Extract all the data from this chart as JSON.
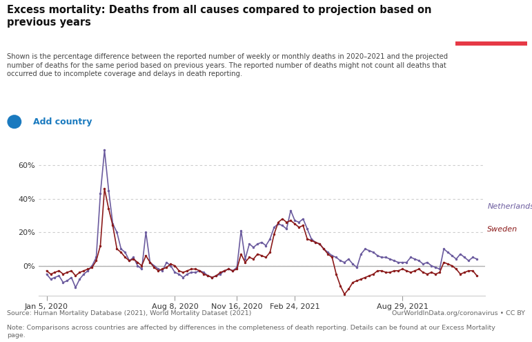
{
  "title": "Excess mortality: Deaths from all causes compared to projection based on\nprevious years",
  "subtitle": "Shown is the percentage difference between the reported number of weekly or monthly deaths in 2020–2021 and the projected\nnumber of deaths for the same period based on previous years. The reported number of deaths might not count all deaths that\noccurred due to incomplete coverage and delays in death reporting.",
  "add_country_text": "Add country",
  "source_text": "Source: Human Mortality Database (2021), World Mortality Dataset (2021)",
  "source_right": "OurWorldInData.org/coronavirus • CC BY",
  "note_text": "Note: Comparisons across countries are affected by differences in the completeness of death reporting. Details can be found at our Excess Mortality\npage.",
  "netherlands_color": "#6b5b9e",
  "sweden_color": "#8b1a1a",
  "zero_line_color": "#b0b0b0",
  "grid_color": "#cccccc",
  "background_color": "#ffffff",
  "tick_dates": [
    "Jan 5, 2020",
    "Aug 8, 2020",
    "Nov 16, 2020",
    "Feb 24, 2021",
    "Aug 29, 2021"
  ],
  "tick_positions": [
    0,
    31,
    46,
    60,
    86
  ],
  "yticks": [
    0,
    20,
    40,
    60
  ],
  "ylim": [
    -18,
    75
  ],
  "xlim": [
    -2,
    106
  ],
  "netherlands_y": [
    -5,
    -8,
    -7,
    -6,
    -10,
    -9,
    -7,
    -13,
    -8,
    -5,
    -3,
    0,
    5,
    43,
    69,
    45,
    25,
    20,
    10,
    8,
    3,
    5,
    0,
    -2,
    20,
    2,
    0,
    -2,
    -3,
    2,
    0,
    -4,
    -5,
    -7,
    -5,
    -4,
    -4,
    -3,
    -4,
    -6,
    -7,
    -6,
    -5,
    -3,
    -2,
    -3,
    -1,
    21,
    4,
    13,
    11,
    13,
    14,
    12,
    16,
    23,
    25,
    24,
    22,
    33,
    27,
    26,
    28,
    22,
    16,
    14,
    13,
    10,
    8,
    6,
    5,
    3,
    2,
    4,
    1,
    -1,
    7,
    10,
    9,
    8,
    6,
    5,
    5,
    4,
    3,
    2,
    2,
    2,
    5,
    4,
    3,
    1,
    2,
    0,
    -1,
    -2,
    10,
    8,
    6,
    4,
    7,
    5,
    3,
    5,
    4
  ],
  "sweden_y": [
    -3,
    -5,
    -4,
    -3,
    -5,
    -4,
    -3,
    -6,
    -4,
    -3,
    -2,
    -1,
    3,
    12,
    46,
    34,
    24,
    10,
    8,
    5,
    3,
    4,
    2,
    0,
    6,
    2,
    -1,
    -3,
    -2,
    -1,
    1,
    0,
    -3,
    -4,
    -3,
    -2,
    -2,
    -3,
    -5,
    -6,
    -7,
    -6,
    -4,
    -3,
    -2,
    -3,
    -2,
    7,
    2,
    5,
    4,
    7,
    6,
    5,
    8,
    19,
    26,
    28,
    26,
    27,
    25,
    23,
    24,
    16,
    15,
    14,
    13,
    10,
    7,
    5,
    -5,
    -12,
    -17,
    -14,
    -10,
    -9,
    -8,
    -7,
    -6,
    -5,
    -3,
    -3,
    -4,
    -4,
    -3,
    -3,
    -2,
    -3,
    -4,
    -3,
    -2,
    -4,
    -5,
    -4,
    -5,
    -4,
    2,
    1,
    0,
    -2,
    -5,
    -4,
    -3,
    -3,
    -6
  ],
  "logo_bg": "#1d3557",
  "logo_red": "#e63946",
  "add_country_color": "#1a7abf",
  "title_color": "#111111",
  "subtitle_color": "#444444",
  "footer_color": "#666666"
}
